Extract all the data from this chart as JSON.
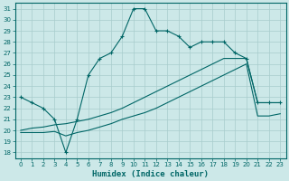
{
  "xlabel": "Humidex (Indice chaleur)",
  "xlim": [
    -0.5,
    23.5
  ],
  "ylim": [
    17.5,
    31.5
  ],
  "xticks": [
    0,
    1,
    2,
    3,
    4,
    5,
    6,
    7,
    8,
    9,
    10,
    11,
    12,
    13,
    14,
    15,
    16,
    17,
    18,
    19,
    20,
    21,
    22,
    23
  ],
  "yticks": [
    18,
    19,
    20,
    21,
    22,
    23,
    24,
    25,
    26,
    27,
    28,
    29,
    30,
    31
  ],
  "bg_color": "#cce8e8",
  "grid_color": "#a8cccc",
  "line_color": "#006666",
  "line1_x": [
    0,
    1,
    2,
    3,
    4,
    5,
    6,
    7,
    8,
    9,
    10,
    11,
    12,
    13,
    14,
    15,
    16,
    17,
    18,
    19,
    20,
    21,
    22,
    23
  ],
  "line1_y": [
    23.0,
    22.5,
    22.0,
    21.0,
    18.0,
    21.0,
    25.0,
    26.5,
    27.0,
    28.5,
    31.0,
    31.0,
    29.0,
    29.0,
    28.5,
    27.5,
    28.0,
    28.0,
    28.0,
    27.0,
    26.5,
    22.5,
    22.5,
    22.5
  ],
  "line2_x": [
    0,
    1,
    2,
    3,
    4,
    5,
    6,
    7,
    8,
    9,
    10,
    11,
    12,
    13,
    14,
    15,
    16,
    17,
    18,
    19,
    20,
    21,
    22,
    23
  ],
  "line2_y": [
    20.0,
    20.2,
    20.3,
    20.5,
    20.6,
    20.8,
    21.0,
    21.3,
    21.6,
    22.0,
    22.5,
    23.0,
    23.5,
    24.0,
    24.5,
    25.0,
    25.5,
    26.0,
    26.5,
    26.5,
    26.5,
    22.5,
    22.5,
    22.5
  ],
  "line3_x": [
    0,
    1,
    2,
    3,
    4,
    5,
    6,
    7,
    8,
    9,
    10,
    11,
    12,
    13,
    14,
    15,
    16,
    17,
    18,
    19,
    20,
    21,
    22,
    23
  ],
  "line3_y": [
    19.8,
    19.8,
    19.8,
    19.9,
    19.5,
    19.8,
    20.0,
    20.3,
    20.6,
    21.0,
    21.3,
    21.6,
    22.0,
    22.5,
    23.0,
    23.5,
    24.0,
    24.5,
    25.0,
    25.5,
    26.0,
    21.3,
    21.3,
    21.5
  ]
}
